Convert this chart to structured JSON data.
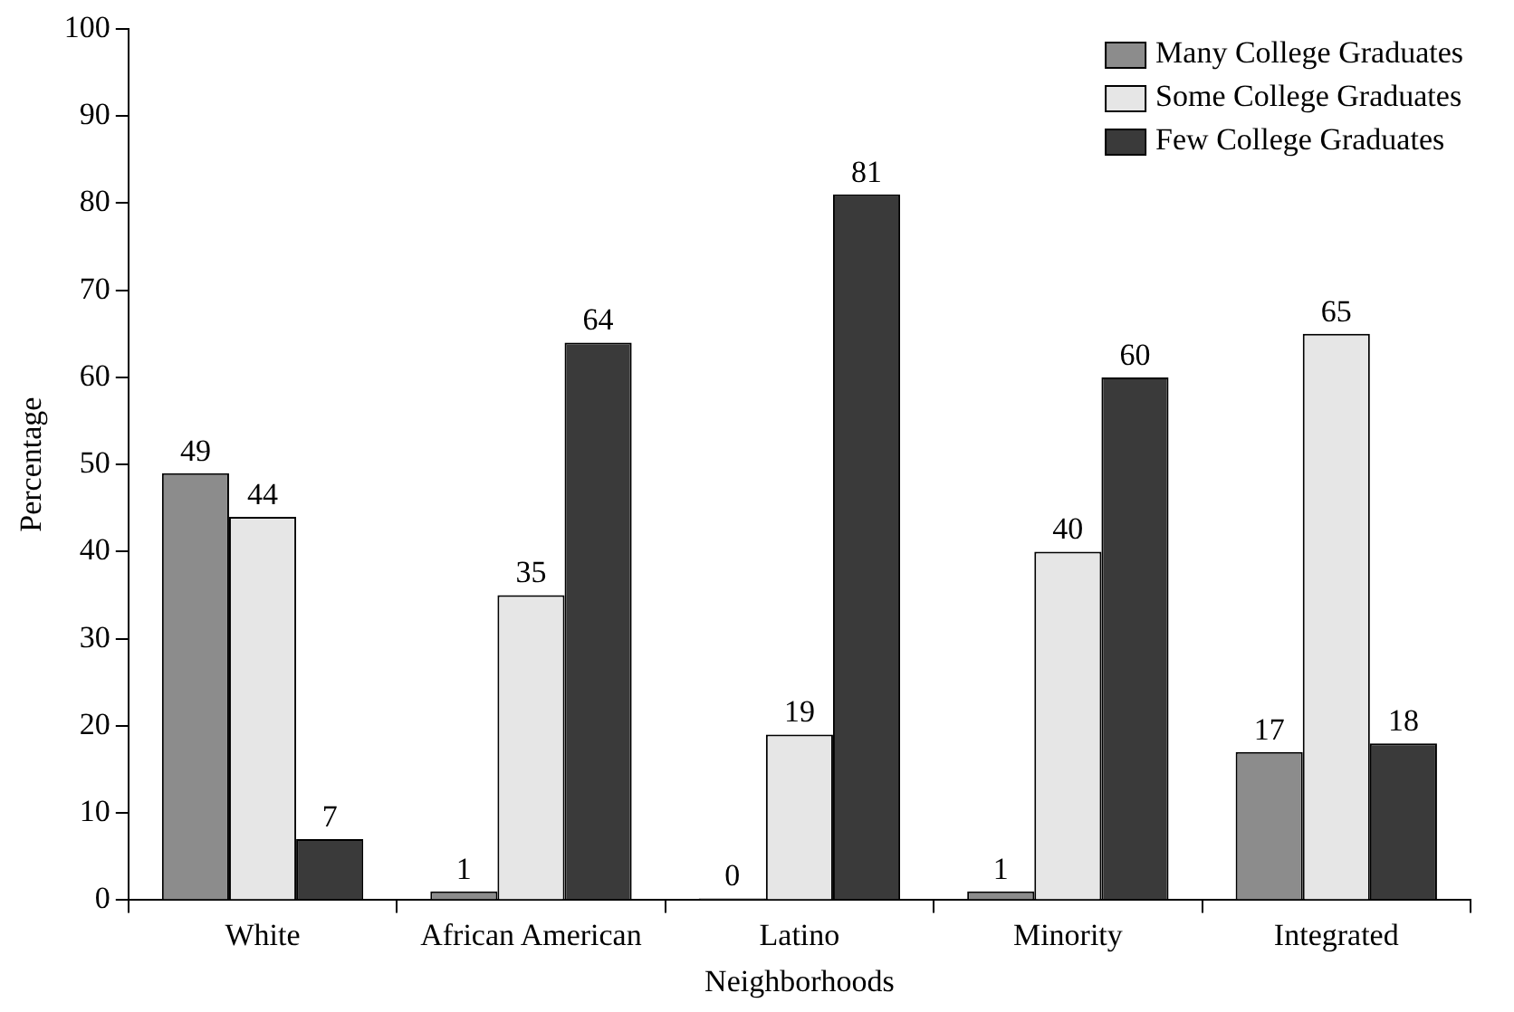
{
  "chart_data": {
    "type": "bar",
    "xlabel": "Neighborhoods",
    "ylabel": "Percentage",
    "categories": [
      "White",
      "African American",
      "Latino",
      "Minority",
      "Integrated"
    ],
    "series": [
      {
        "name": "Many College Graduates",
        "color": "#8c8c8c",
        "values": [
          49,
          1,
          0,
          1,
          17
        ]
      },
      {
        "name": "Some College Graduates",
        "color": "#e6e6e6",
        "values": [
          44,
          35,
          19,
          40,
          65
        ]
      },
      {
        "name": "Few College Graduates",
        "color": "#3a3a3a",
        "values": [
          7,
          64,
          81,
          60,
          18
        ]
      }
    ],
    "ylim": [
      0,
      100
    ],
    "yticks": [
      0,
      10,
      20,
      30,
      40,
      50,
      60,
      70,
      80,
      90,
      100
    ],
    "grid": false,
    "legend": "top right",
    "data_labels": true
  }
}
